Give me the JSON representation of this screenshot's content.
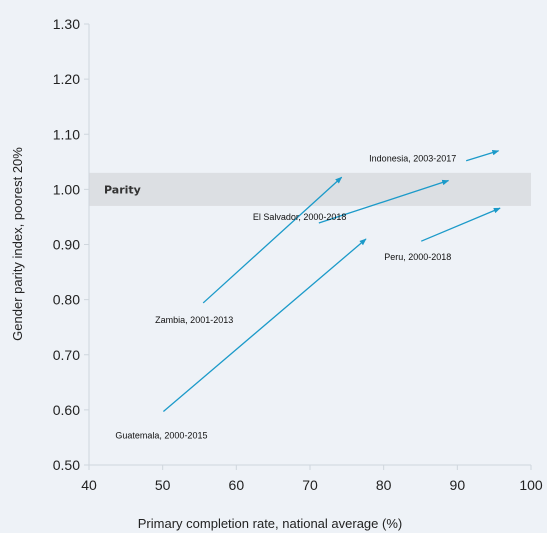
{
  "chart_data": {
    "type": "line",
    "xlabel": "Primary completion rate, national average (%)",
    "ylabel": "Gender parity index, poorest 20%",
    "xlim": [
      40,
      100
    ],
    "ylim": [
      0.5,
      1.3
    ],
    "x_ticks": [
      "40",
      "50",
      "60",
      "70",
      "80",
      "90",
      "100"
    ],
    "y_ticks": [
      "0.50",
      "0.60",
      "0.70",
      "0.80",
      "0.90",
      "1.00",
      "1.10",
      "1.20",
      "1.30"
    ],
    "band": {
      "label": "Parity",
      "y_range": [
        0.97,
        1.03
      ],
      "color": "#dcdfe3"
    },
    "arrow_color": "#1b9ac9",
    "series": [
      {
        "name": "Zambia, 2001-2013",
        "x": [
          55.5,
          74.3
        ],
        "y": [
          0.794,
          1.022
        ]
      },
      {
        "name": "Guatemala, 2000-2015",
        "x": [
          50.1,
          77.6
        ],
        "y": [
          0.597,
          0.91
        ]
      },
      {
        "name": "El Salvador, 2000-2018",
        "x": [
          71.2,
          88.8
        ],
        "y": [
          0.939,
          1.016
        ]
      },
      {
        "name": "Peru, 2000-2018",
        "x": [
          85.1,
          95.8
        ],
        "y": [
          0.906,
          0.966
        ]
      },
      {
        "name": "Indonesia, 2003-2017",
        "x": [
          91.2,
          95.6
        ],
        "y": [
          1.052,
          1.07
        ]
      }
    ]
  }
}
